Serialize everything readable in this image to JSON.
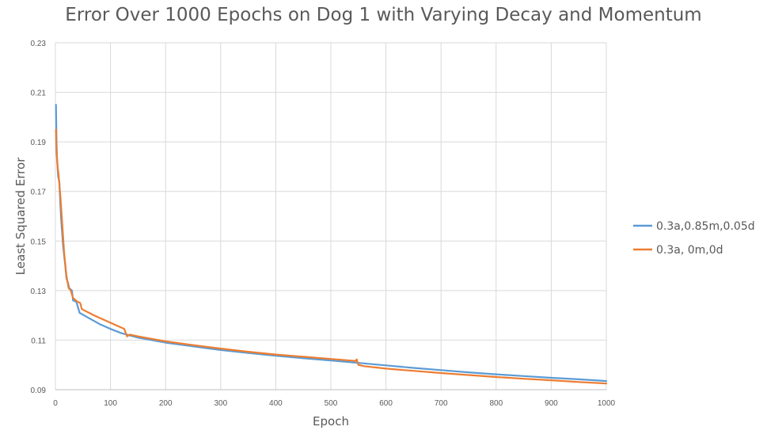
{
  "chart_data": {
    "type": "line",
    "title": "Error Over 1000 Epochs on Dog 1 with Varying Decay and Momentum",
    "xlabel": "Epoch",
    "ylabel": "Least Squared Error",
    "xlim": [
      0,
      1000
    ],
    "ylim": [
      0.09,
      0.23
    ],
    "x_ticks": [
      0,
      100,
      200,
      300,
      400,
      500,
      600,
      700,
      800,
      900,
      1000
    ],
    "y_ticks": [
      0.09,
      0.11,
      0.13,
      0.15,
      0.17,
      0.19,
      0.21,
      0.23
    ],
    "y_tick_labels": [
      "0.09",
      "0.11",
      "0.13",
      "0.15",
      "0.17",
      "0.19",
      "0.21",
      "0.23"
    ],
    "grid": true,
    "legend_position": "right",
    "series": [
      {
        "name": "0.3a,0.85m,0.05d",
        "color": "#5B9BD5",
        "points": [
          [
            1,
            0.205
          ],
          [
            2,
            0.19
          ],
          [
            3,
            0.183
          ],
          [
            5,
            0.176
          ],
          [
            7,
            0.174
          ],
          [
            10,
            0.16
          ],
          [
            14,
            0.148
          ],
          [
            18,
            0.14
          ],
          [
            20,
            0.135
          ],
          [
            23,
            0.133
          ],
          [
            25,
            0.131
          ],
          [
            30,
            0.13
          ],
          [
            32,
            0.126
          ],
          [
            38,
            0.1255
          ],
          [
            44,
            0.121
          ],
          [
            60,
            0.119
          ],
          [
            80,
            0.1165
          ],
          [
            100,
            0.1145
          ],
          [
            120,
            0.1128
          ],
          [
            150,
            0.111
          ],
          [
            200,
            0.109
          ],
          [
            250,
            0.1075
          ],
          [
            300,
            0.106
          ],
          [
            350,
            0.1048
          ],
          [
            400,
            0.1037
          ],
          [
            450,
            0.1027
          ],
          [
            500,
            0.1018
          ],
          [
            550,
            0.1008
          ],
          [
            600,
            0.0998
          ],
          [
            650,
            0.0988
          ],
          [
            700,
            0.0979
          ],
          [
            750,
            0.097
          ],
          [
            800,
            0.0962
          ],
          [
            850,
            0.0955
          ],
          [
            900,
            0.0948
          ],
          [
            950,
            0.0942
          ],
          [
            1000,
            0.0935
          ]
        ]
      },
      {
        "name": "0.3a, 0m,0d",
        "color": "#ED7D31",
        "points": [
          [
            1,
            0.195
          ],
          [
            2,
            0.186
          ],
          [
            4,
            0.18
          ],
          [
            6,
            0.176
          ],
          [
            9,
            0.168
          ],
          [
            12,
            0.158
          ],
          [
            16,
            0.145
          ],
          [
            20,
            0.136
          ],
          [
            24,
            0.131
          ],
          [
            28,
            0.13
          ],
          [
            32,
            0.127
          ],
          [
            40,
            0.1255
          ],
          [
            45,
            0.125
          ],
          [
            48,
            0.1225
          ],
          [
            70,
            0.12
          ],
          [
            100,
            0.117
          ],
          [
            125,
            0.1145
          ],
          [
            130,
            0.1115
          ],
          [
            135,
            0.1122
          ],
          [
            150,
            0.1115
          ],
          [
            200,
            0.1095
          ],
          [
            250,
            0.108
          ],
          [
            300,
            0.1066
          ],
          [
            350,
            0.1053
          ],
          [
            400,
            0.1042
          ],
          [
            450,
            0.1033
          ],
          [
            500,
            0.1024
          ],
          [
            545,
            0.1016
          ],
          [
            547,
            0.1022
          ],
          [
            550,
            0.1
          ],
          [
            560,
            0.0995
          ],
          [
            600,
            0.0985
          ],
          [
            650,
            0.0976
          ],
          [
            700,
            0.0967
          ],
          [
            750,
            0.0959
          ],
          [
            800,
            0.0951
          ],
          [
            850,
            0.0944
          ],
          [
            900,
            0.0938
          ],
          [
            950,
            0.0931
          ],
          [
            1000,
            0.0925
          ]
        ]
      }
    ]
  }
}
